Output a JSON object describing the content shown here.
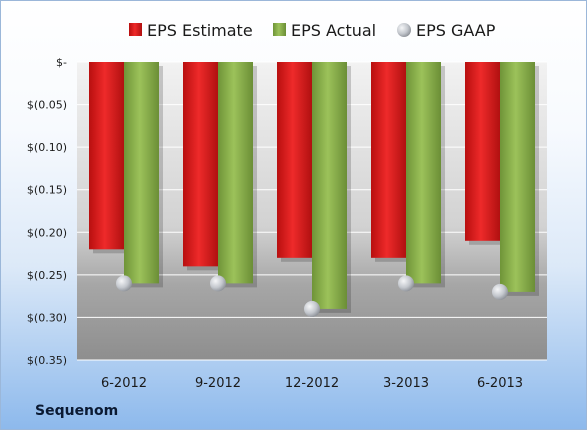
{
  "company": "Sequenom",
  "chart_data": {
    "type": "bar",
    "categories": [
      "6-2012",
      "9-2012",
      "12-2012",
      "3-2013",
      "6-2013"
    ],
    "series": [
      {
        "name": "EPS Estimate",
        "kind": "bar",
        "color": "#e02020",
        "values": [
          -0.22,
          -0.24,
          -0.23,
          -0.23,
          -0.21
        ]
      },
      {
        "name": "EPS Actual",
        "kind": "bar",
        "color": "#8bb04a",
        "values": [
          -0.26,
          -0.26,
          -0.29,
          -0.26,
          -0.27
        ]
      },
      {
        "name": "EPS GAAP",
        "kind": "marker",
        "color": "#c8ccd2",
        "values": [
          -0.26,
          -0.26,
          -0.29,
          -0.26,
          -0.27
        ]
      }
    ],
    "y_ticks": [
      {
        "value": 0,
        "label": "$-"
      },
      {
        "value": -0.05,
        "label": "$(0.05)"
      },
      {
        "value": -0.1,
        "label": "$(0.10)"
      },
      {
        "value": -0.15,
        "label": "$(0.15)"
      },
      {
        "value": -0.2,
        "label": "$(0.20)"
      },
      {
        "value": -0.25,
        "label": "$(0.25)"
      },
      {
        "value": -0.3,
        "label": "$(0.30)"
      },
      {
        "value": -0.35,
        "label": "$(0.35)"
      }
    ],
    "ylim": [
      -0.35,
      0
    ],
    "legend": "top",
    "grid": true,
    "title": "",
    "xlabel": "",
    "ylabel": ""
  }
}
